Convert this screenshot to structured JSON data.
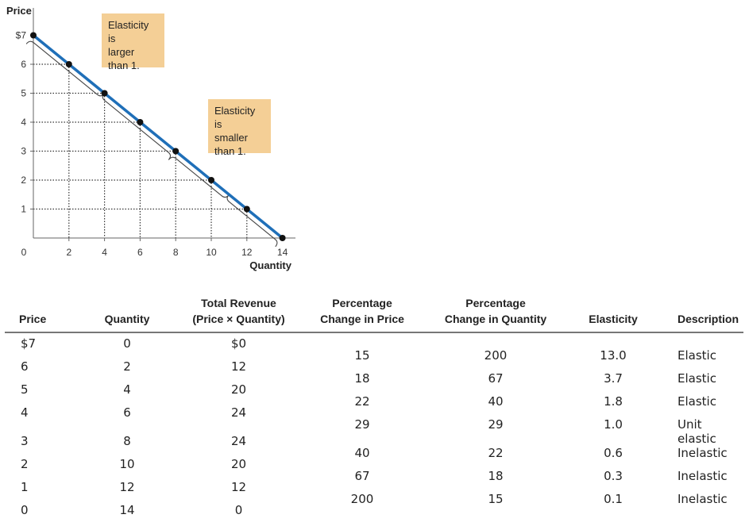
{
  "chart_data": {
    "type": "line",
    "xlabel": "Quantity",
    "ylabel": "Price",
    "xlim": [
      0,
      14
    ],
    "ylim": [
      0,
      7
    ],
    "x_ticks": [
      "0",
      "2",
      "4",
      "6",
      "8",
      "10",
      "12",
      "14"
    ],
    "y_ticks": [
      "$7",
      "6",
      "5",
      "4",
      "3",
      "2",
      "1"
    ],
    "series": [
      {
        "x": [
          0,
          2,
          4,
          6,
          8,
          10,
          12,
          14
        ],
        "y": [
          7,
          6,
          5,
          4,
          3,
          2,
          1,
          0
        ],
        "color": "#1f6fb8"
      }
    ],
    "point_color": "#111111",
    "gridlines": "dotted drop lines to each point",
    "annotations": [
      {
        "lines": [
          "Elasticity is",
          "larger",
          "than 1."
        ],
        "color": "#f4cf96",
        "brace_from": [
          0,
          7
        ],
        "brace_to": [
          8,
          3
        ]
      },
      {
        "lines": [
          "Elasticity is",
          "smaller",
          "than 1."
        ],
        "color": "#f4cf96",
        "brace_from": [
          8,
          3
        ],
        "brace_to": [
          14,
          0
        ]
      }
    ]
  },
  "table": {
    "headers": [
      {
        "lines": [
          "Price"
        ]
      },
      {
        "lines": [
          "Quantity"
        ]
      },
      {
        "lines": [
          "Total Revenue",
          "(Price × Quantity)"
        ]
      },
      {
        "lines": [
          "Percentage",
          "Change in Price"
        ]
      },
      {
        "lines": [
          "Percentage",
          "Change in Quantity"
        ]
      },
      {
        "lines": [
          "Elasticity"
        ]
      },
      {
        "lines": [
          "Description"
        ]
      }
    ],
    "rows": [
      {
        "price": "$7",
        "quantity": "0",
        "revenue": "$0",
        "pct_price": "15",
        "pct_qty": "200",
        "elasticity": "13.0",
        "description": "Elastic"
      },
      {
        "price": "6",
        "quantity": "2",
        "revenue": "12",
        "pct_price": "18",
        "pct_qty": "67",
        "elasticity": "3.7",
        "description": "Elastic"
      },
      {
        "price": "5",
        "quantity": "4",
        "revenue": "20",
        "pct_price": "22",
        "pct_qty": "40",
        "elasticity": "1.8",
        "description": "Elastic"
      },
      {
        "price": "4",
        "quantity": "6",
        "revenue": "24",
        "pct_price": "29",
        "pct_qty": "29",
        "elasticity": "1.0",
        "description": "Unit elastic"
      },
      {
        "price": "3",
        "quantity": "8",
        "revenue": "24",
        "pct_price": "40",
        "pct_qty": "22",
        "elasticity": "0.6",
        "description": "Inelastic"
      },
      {
        "price": "2",
        "quantity": "10",
        "revenue": "20",
        "pct_price": "67",
        "pct_qty": "18",
        "elasticity": "0.3",
        "description": "Inelastic"
      },
      {
        "price": "1",
        "quantity": "12",
        "revenue": "12",
        "pct_price": "200",
        "pct_qty": "15",
        "elasticity": "0.1",
        "description": "Inelastic"
      },
      {
        "price": "0",
        "quantity": "14",
        "revenue": "0"
      }
    ]
  }
}
